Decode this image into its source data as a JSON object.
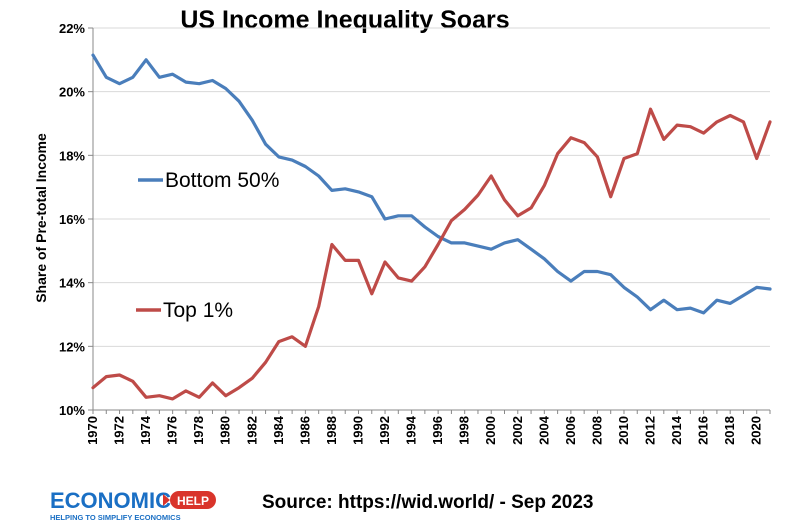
{
  "chart_data": {
    "type": "line",
    "title": "US Income Inequality Soars",
    "xlabel": "",
    "ylabel": "Share of Pre-total Income",
    "ylim": [
      10,
      22
    ],
    "yticks": [
      10,
      12,
      14,
      16,
      18,
      20,
      22
    ],
    "ytick_suffix": "%",
    "xlim": [
      1970,
      2021
    ],
    "xticks": [
      1970,
      1972,
      1974,
      1976,
      1978,
      1980,
      1982,
      1984,
      1986,
      1988,
      1990,
      1992,
      1994,
      1996,
      1998,
      2000,
      2002,
      2004,
      2006,
      2008,
      2010,
      2012,
      2014,
      2016,
      2018,
      2020
    ],
    "grid": true,
    "x": [
      1970,
      1971,
      1972,
      1973,
      1974,
      1975,
      1976,
      1977,
      1978,
      1979,
      1980,
      1981,
      1982,
      1983,
      1984,
      1985,
      1986,
      1987,
      1988,
      1989,
      1990,
      1991,
      1992,
      1993,
      1994,
      1995,
      1996,
      1997,
      1998,
      1999,
      2000,
      2001,
      2002,
      2003,
      2004,
      2005,
      2006,
      2007,
      2008,
      2009,
      2010,
      2011,
      2012,
      2013,
      2014,
      2015,
      2016,
      2017,
      2018,
      2019,
      2020,
      2021
    ],
    "series": [
      {
        "name": "Bottom 50%",
        "color": "#4a7ebb",
        "values": [
          21.15,
          20.45,
          20.25,
          20.45,
          21.0,
          20.45,
          20.55,
          20.3,
          20.25,
          20.35,
          20.1,
          19.7,
          19.1,
          18.35,
          17.95,
          17.85,
          17.65,
          17.35,
          16.9,
          16.95,
          16.85,
          16.7,
          16.0,
          16.1,
          16.1,
          15.75,
          15.45,
          15.25,
          15.25,
          15.15,
          15.05,
          15.25,
          15.35,
          15.05,
          14.75,
          14.35,
          14.05,
          14.35,
          14.35,
          14.25,
          13.85,
          13.55,
          13.15,
          13.45,
          13.15,
          13.2,
          13.05,
          13.45,
          13.35,
          13.6,
          13.85,
          13.8
        ]
      },
      {
        "name": "Top 1%",
        "color": "#be4b48",
        "values": [
          10.7,
          11.05,
          11.1,
          10.9,
          10.4,
          10.45,
          10.35,
          10.6,
          10.4,
          10.85,
          10.45,
          10.7,
          11.0,
          11.5,
          12.15,
          12.3,
          12.0,
          13.25,
          15.2,
          14.7,
          14.7,
          13.65,
          14.65,
          14.15,
          14.05,
          14.5,
          15.2,
          15.95,
          16.3,
          16.75,
          17.35,
          16.6,
          16.1,
          16.35,
          17.05,
          18.05,
          18.55,
          18.4,
          17.95,
          16.7,
          17.9,
          18.05,
          19.45,
          18.5,
          18.95,
          18.9,
          18.7,
          19.05,
          19.25,
          19.05,
          17.9,
          19.05
        ]
      }
    ],
    "series_labels": [
      {
        "text": "Bottom 50%",
        "series": 0
      },
      {
        "text": "Top 1%",
        "series": 1
      }
    ]
  },
  "footer": {
    "source": "Source: https://wid.world/ - Sep 2023",
    "logo_main": "ECONOMICS",
    "logo_help": "HELP",
    "logo_tagline": "HELPING TO SIMPLIFY ECONOMICS",
    "logo_color": "#1a6fc4",
    "logo_accent": "#d9342b"
  }
}
